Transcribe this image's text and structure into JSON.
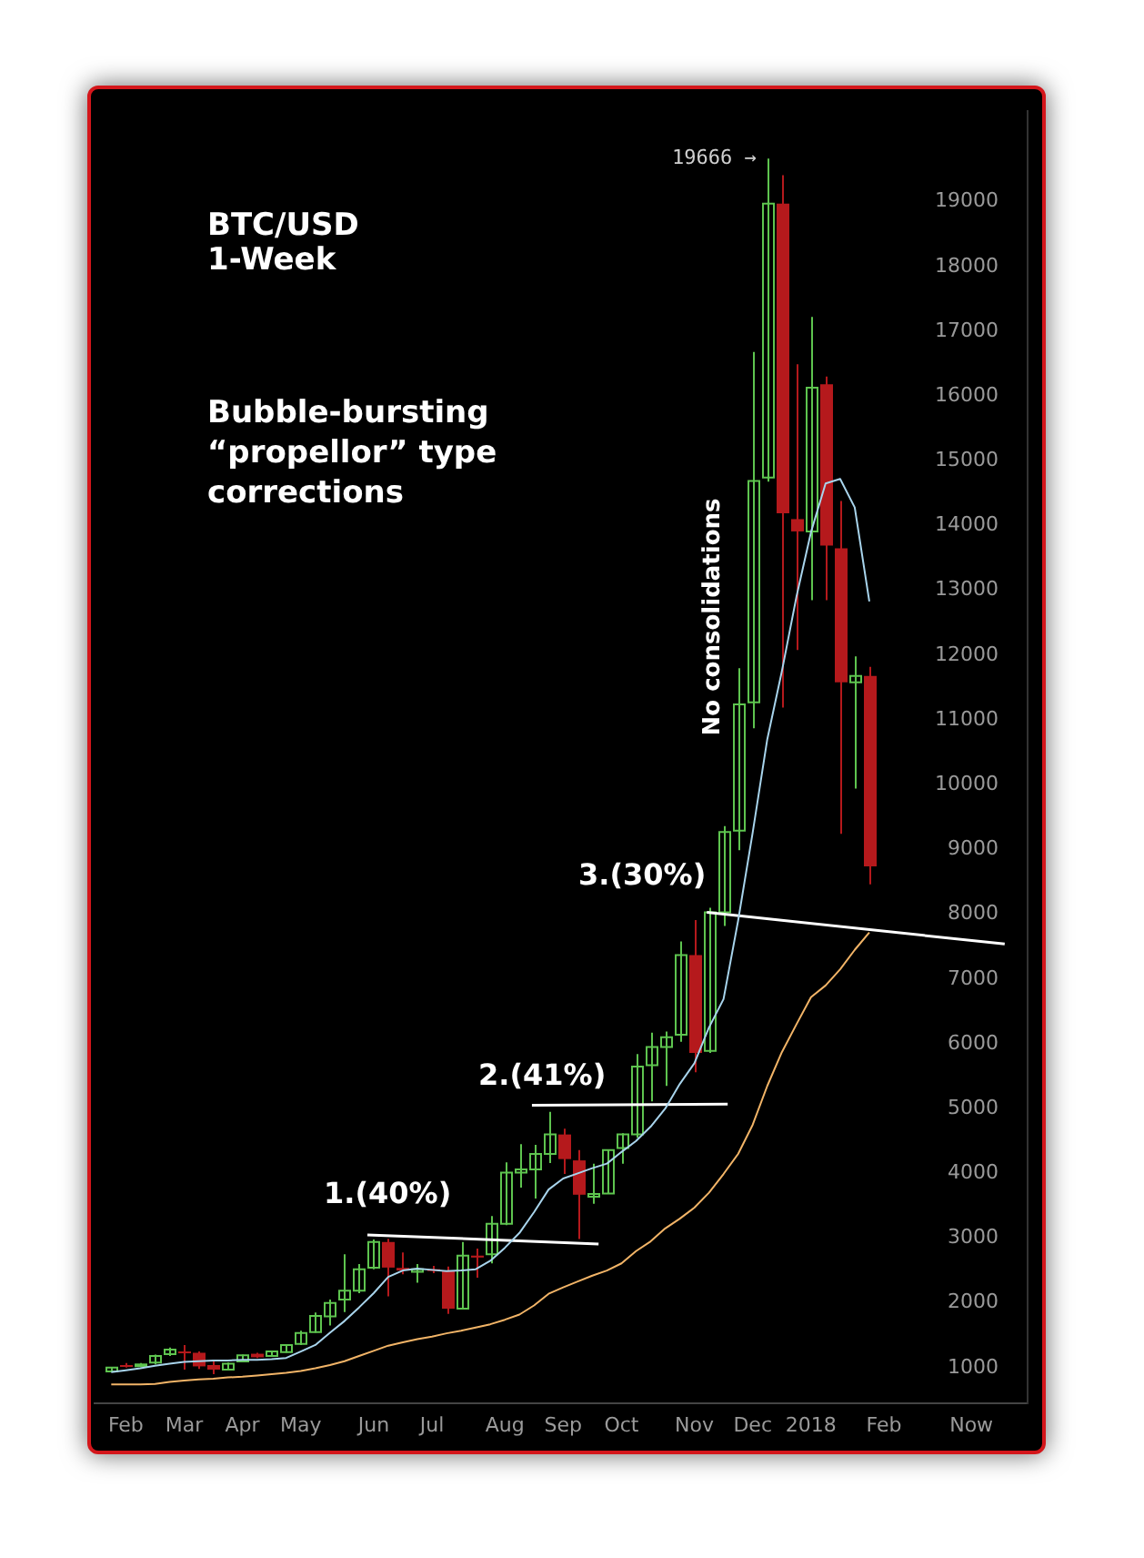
{
  "chart_data": {
    "type": "candlestick",
    "title": "BTC/USD 1-Week",
    "subtitle": "Bubble-bursting “propellor” type corrections",
    "x": [
      "2017-01-30",
      "2017-02-06",
      "2017-02-13",
      "2017-02-20",
      "2017-02-27",
      "2017-03-06",
      "2017-03-13",
      "2017-03-20",
      "2017-03-27",
      "2017-04-03",
      "2017-04-10",
      "2017-04-17",
      "2017-04-24",
      "2017-05-01",
      "2017-05-08",
      "2017-05-15",
      "2017-05-22",
      "2017-05-29",
      "2017-06-05",
      "2017-06-12",
      "2017-06-19",
      "2017-06-26",
      "2017-07-03",
      "2017-07-10",
      "2017-07-17",
      "2017-07-24",
      "2017-07-31",
      "2017-08-07",
      "2017-08-14",
      "2017-08-21",
      "2017-08-28",
      "2017-09-04",
      "2017-09-11",
      "2017-09-18",
      "2017-09-25",
      "2017-10-02",
      "2017-10-09",
      "2017-10-16",
      "2017-10-23",
      "2017-10-30",
      "2017-11-06",
      "2017-11-13",
      "2017-11-20",
      "2017-11-27",
      "2017-12-04",
      "2017-12-11",
      "2017-12-18",
      "2017-12-25",
      "2018-01-01",
      "2018-01-08",
      "2018-01-15",
      "2018-01-22",
      "2018-01-29"
    ],
    "ohlc": [
      [
        940,
        1010,
        930,
        1000
      ],
      [
        1040,
        1070,
        1000,
        1030
      ],
      [
        1030,
        1070,
        1010,
        1050
      ],
      [
        1080,
        1200,
        1050,
        1180
      ],
      [
        1210,
        1310,
        1180,
        1280
      ],
      [
        1250,
        1350,
        970,
        1230
      ],
      [
        1230,
        1250,
        980,
        1020
      ],
      [
        1040,
        1110,
        900,
        970
      ],
      [
        970,
        1080,
        960,
        1060
      ],
      [
        1095,
        1200,
        1090,
        1190
      ],
      [
        1215,
        1230,
        1150,
        1160
      ],
      [
        1180,
        1260,
        1170,
        1250
      ],
      [
        1240,
        1360,
        1230,
        1350
      ],
      [
        1365,
        1570,
        1350,
        1535
      ],
      [
        1550,
        1850,
        1540,
        1800
      ],
      [
        1790,
        2050,
        1650,
        2000
      ],
      [
        2050,
        2750,
        1860,
        2190
      ],
      [
        2190,
        2600,
        2150,
        2520
      ],
      [
        2545,
        2980,
        2520,
        2940
      ],
      [
        2940,
        2990,
        2100,
        2545
      ],
      [
        2540,
        2780,
        2440,
        2500
      ],
      [
        2480,
        2600,
        2310,
        2520
      ],
      [
        2520,
        2570,
        2460,
        2500
      ],
      [
        2490,
        2560,
        1830,
        1910
      ],
      [
        1910,
        2940,
        1900,
        2730
      ],
      [
        2730,
        2840,
        2390,
        2700
      ],
      [
        2750,
        3340,
        2610,
        3220
      ],
      [
        3220,
        4170,
        3200,
        4010
      ],
      [
        4010,
        4450,
        3780,
        4060
      ],
      [
        4060,
        4440,
        3610,
        4300
      ],
      [
        4300,
        4950,
        4160,
        4600
      ],
      [
        4600,
        4690,
        3990,
        4220
      ],
      [
        4200,
        4360,
        2985,
        3670
      ],
      [
        3640,
        4150,
        3530,
        3680
      ],
      [
        3690,
        4370,
        3680,
        4360
      ],
      [
        4390,
        4620,
        4150,
        4600
      ],
      [
        4600,
        5840,
        4550,
        5650
      ],
      [
        5670,
        6170,
        5110,
        5950
      ],
      [
        5950,
        6190,
        5350,
        6100
      ],
      [
        6140,
        7580,
        6030,
        7370
      ],
      [
        7370,
        7910,
        5560,
        5860
      ],
      [
        5890,
        8100,
        5860,
        8030
      ],
      [
        8030,
        9360,
        7820,
        9270
      ],
      [
        9290,
        11800,
        8990,
        11240
      ],
      [
        11270,
        16680,
        10870,
        14690
      ],
      [
        14740,
        19666,
        14680,
        18970
      ],
      [
        18970,
        19410,
        11190,
        14190
      ],
      [
        14100,
        16490,
        12080,
        13910
      ],
      [
        13910,
        17220,
        12850,
        16130
      ],
      [
        16180,
        16300,
        12850,
        13690
      ],
      [
        13650,
        14380,
        9240,
        11580
      ],
      [
        11580,
        11980,
        9940,
        11680
      ],
      [
        11680,
        11820,
        8460,
        8740
      ]
    ],
    "colors": [
      "#5ec44f",
      "#b5191c",
      "#5ec44f",
      "#5ec44f",
      "#5ec44f",
      "#b5191c",
      "#b5191c",
      "#b5191c",
      "#5ec44f",
      "#5ec44f",
      "#b5191c",
      "#5ec44f",
      "#5ec44f",
      "#5ec44f",
      "#5ec44f",
      "#5ec44f",
      "#5ec44f",
      "#5ec44f",
      "#5ec44f",
      "#b5191c",
      "#b5191c",
      "#5ec44f",
      "#b5191c",
      "#b5191c",
      "#5ec44f",
      "#b5191c",
      "#5ec44f",
      "#5ec44f",
      "#5ec44f",
      "#5ec44f",
      "#5ec44f",
      "#b5191c",
      "#b5191c",
      "#5ec44f",
      "#5ec44f",
      "#5ec44f",
      "#5ec44f",
      "#5ec44f",
      "#5ec44f",
      "#5ec44f",
      "#b5191c",
      "#5ec44f",
      "#5ec44f",
      "#5ec44f",
      "#5ec44f",
      "#5ec44f",
      "#b5191c",
      "#b5191c",
      "#5ec44f",
      "#b5191c",
      "#b5191c",
      "#5ec44f",
      "#b5191c"
    ],
    "series": [
      {
        "type": "line",
        "color": "#a8d4ec",
        "values": [
          930,
          960,
          990,
          1030,
          1060,
          1090,
          1100,
          1110,
          1110,
          1120,
          1120,
          1130,
          1150,
          1250,
          1350,
          1540,
          1720,
          1930,
          2150,
          2400,
          2500,
          2530,
          2510,
          2490,
          2500,
          2520,
          2650,
          2850,
          3080,
          3400,
          3750,
          3920,
          4000,
          4080,
          4150,
          4330,
          4500,
          4720,
          5000,
          5380,
          5700,
          6250,
          6690,
          7900,
          9260,
          10700,
          11750,
          12900,
          13900,
          14650,
          14720,
          14280,
          12830
        ]
      },
      {
        "type": "line",
        "color": "#f2b467",
        "values": [
          740,
          740,
          740,
          750,
          780,
          800,
          820,
          830,
          850,
          860,
          880,
          900,
          920,
          950,
          990,
          1040,
          1100,
          1180,
          1260,
          1340,
          1390,
          1440,
          1480,
          1530,
          1570,
          1620,
          1670,
          1740,
          1820,
          1960,
          2140,
          2240,
          2330,
          2420,
          2500,
          2610,
          2800,
          2950,
          3150,
          3300,
          3470,
          3700,
          3990,
          4300,
          4750,
          5350,
          5870,
          6300,
          6720,
          6900,
          7150,
          7450,
          7720
        ]
      },
      {
        "type": "line",
        "color": "#ffffff",
        "x": [
          "2017-06-02",
          "2017-09-21"
        ],
        "values": [
          3050,
          2910
        ]
      },
      {
        "type": "line",
        "color": "#ffffff",
        "x": [
          "2017-08-20",
          "2017-11-22"
        ],
        "values": [
          5050,
          5070
        ]
      },
      {
        "type": "line",
        "color": "#ffffff",
        "x": [
          "2017-11-12",
          "2018-04-04"
        ],
        "values": [
          8030,
          7540
        ]
      }
    ],
    "xlim": [
      "2017-01-22",
      "2018-04-15"
    ],
    "xticks": [
      {
        "value": "2017-02-06",
        "label": "Feb"
      },
      {
        "value": "2017-03-06",
        "label": "Mar"
      },
      {
        "value": "2017-04-03",
        "label": "Apr"
      },
      {
        "value": "2017-05-01",
        "label": "May"
      },
      {
        "value": "2017-06-05",
        "label": "Jun"
      },
      {
        "value": "2017-07-03",
        "label": "Jul"
      },
      {
        "value": "2017-08-07",
        "label": "Aug"
      },
      {
        "value": "2017-09-04",
        "label": "Sep"
      },
      {
        "value": "2017-10-02",
        "label": "Oct"
      },
      {
        "value": "2017-11-06",
        "label": "Nov"
      },
      {
        "value": "2017-12-04",
        "label": "Dec"
      },
      {
        "value": "2018-01-01",
        "label": "2018"
      },
      {
        "value": "2018-02-05",
        "label": "Feb"
      },
      {
        "value": "2018-03-19",
        "label": "Now"
      }
    ],
    "ylim": [
      450,
      20400
    ],
    "yticks": [
      1000,
      2000,
      3000,
      4000,
      5000,
      6000,
      7000,
      8000,
      9000,
      10000,
      11000,
      12000,
      13000,
      14000,
      15000,
      16000,
      17000,
      18000,
      19000
    ],
    "annotations": [
      {
        "text": "19666 →",
        "x": "2017-12-11",
        "y": 19666
      },
      "1.(40%)",
      "2.(41%)",
      "3.(30%)",
      "No consolidations"
    ]
  }
}
